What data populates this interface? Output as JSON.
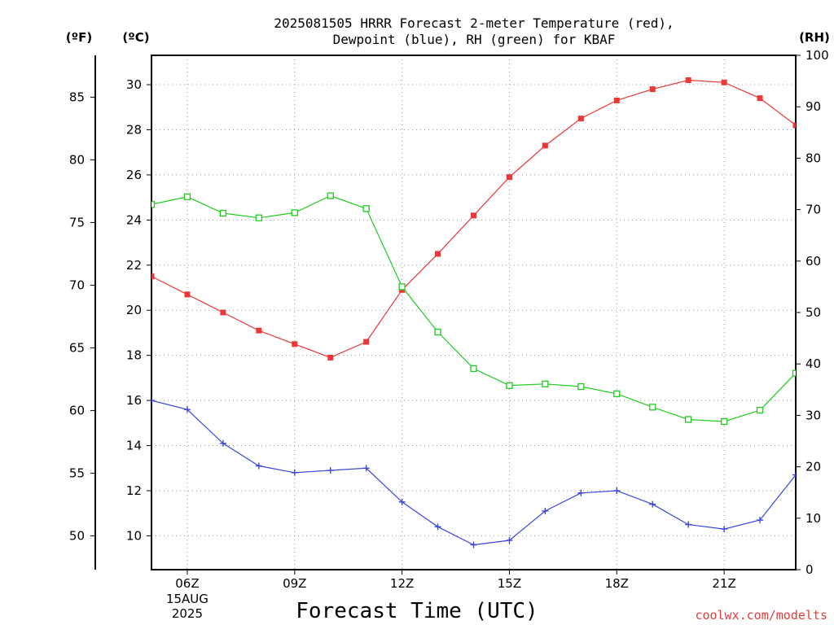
{
  "chart_data": {
    "type": "line",
    "title": [
      "2025081505 HRRR Forecast 2-meter Temperature (red),",
      "Dewpoint (blue), RH (green) for KBAF"
    ],
    "xlabel": "Forecast Time (UTC)",
    "units": {
      "fahrenheit": "(ºF)",
      "celsius": "(ºC)",
      "rh": "(RH)"
    },
    "credit": "coolwx.com/modelts",
    "x_hours": [
      5,
      6,
      7,
      8,
      9,
      10,
      11,
      12,
      13,
      14,
      15,
      16,
      17,
      18,
      19,
      20,
      21,
      22,
      23
    ],
    "x_ticks": [
      {
        "label": "06Z",
        "date_lines": [
          "15AUG",
          "2025"
        ]
      },
      {
        "label": "09Z",
        "date_lines": []
      },
      {
        "label": "12Z",
        "date_lines": []
      },
      {
        "label": "15Z",
        "date_lines": []
      },
      {
        "label": "18Z",
        "date_lines": []
      },
      {
        "label": "21Z",
        "date_lines": []
      }
    ],
    "y_celsius_ticks": [
      "10",
      "12",
      "14",
      "16",
      "18",
      "20",
      "22",
      "24",
      "26",
      "28",
      "30"
    ],
    "y_fahrenheit_ticks": [
      "50",
      "55",
      "60",
      "65",
      "70",
      "75",
      "80",
      "85"
    ],
    "y_rh_ticks": [
      "0",
      "10",
      "20",
      "30",
      "40",
      "50",
      "60",
      "70",
      "80",
      "90",
      "100"
    ],
    "ylim_celsius": [
      8.5,
      31.3
    ],
    "ylim_rh": [
      0,
      100
    ],
    "grid": true,
    "series": [
      {
        "name": "Temperature",
        "axis": "celsius",
        "color": "#e83838",
        "marker": "filled-square",
        "values": [
          21.5,
          20.7,
          19.9,
          19.1,
          18.5,
          17.9,
          18.6,
          20.9,
          22.5,
          24.2,
          25.9,
          27.3,
          28.5,
          29.3,
          29.8,
          30.2,
          30.1,
          29.4,
          28.2
        ]
      },
      {
        "name": "Dewpoint",
        "axis": "celsius",
        "color": "#3a46e0",
        "marker": "plus",
        "values": [
          16.0,
          15.6,
          14.1,
          13.1,
          12.8,
          12.9,
          13.0,
          11.5,
          10.4,
          9.6,
          9.8,
          11.1,
          11.9,
          12.0,
          11.4,
          10.5,
          10.3,
          10.7,
          12.7
        ]
      },
      {
        "name": "RH",
        "axis": "rh",
        "color": "#1fcc1f",
        "marker": "open-square",
        "values": [
          71,
          72.5,
          69.3,
          68.4,
          69.4,
          72.7,
          70.2,
          55,
          46.2,
          39.1,
          35.8,
          36.1,
          35.6,
          34.2,
          31.6,
          29.2,
          28.8,
          31,
          38.2
        ]
      }
    ]
  }
}
